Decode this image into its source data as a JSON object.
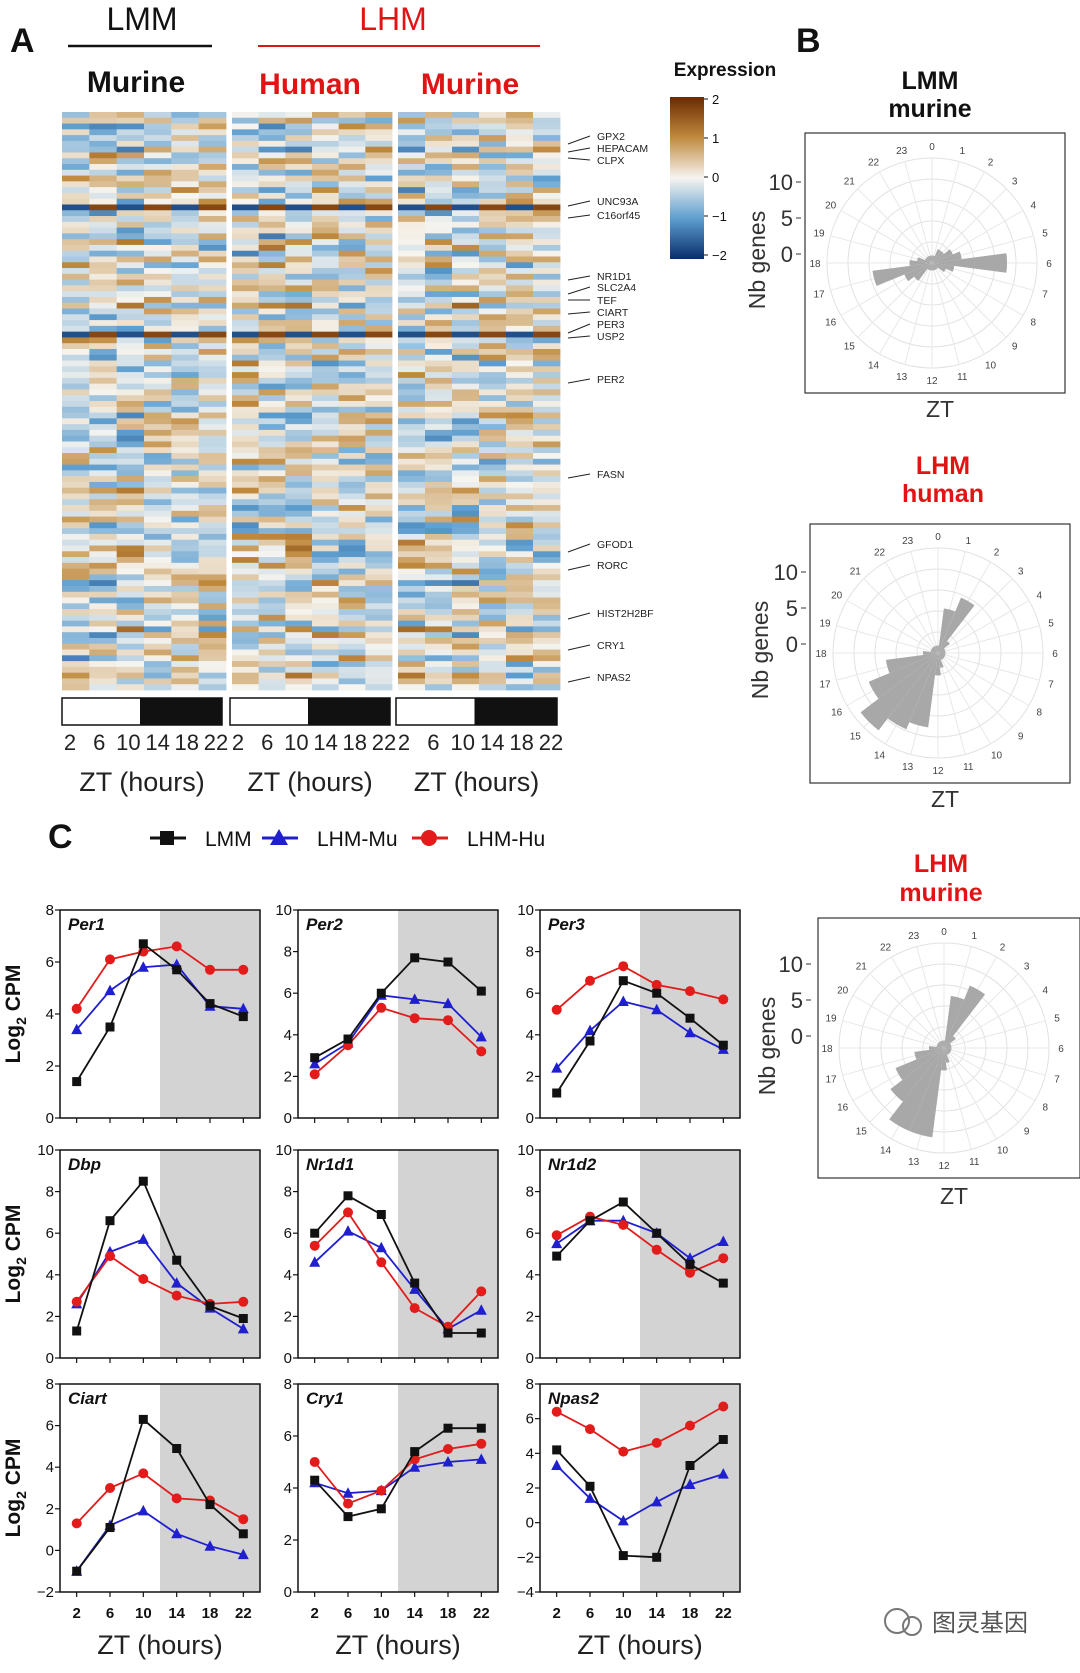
{
  "panel_labels": {
    "a": "A",
    "b": "B",
    "c": "C"
  },
  "heatmap_header": {
    "lmm": "LMM",
    "lhm": "LHM",
    "groups": [
      "Murine",
      "Human",
      "Murine"
    ]
  },
  "colorbar": {
    "title": "Expression",
    "ticks": [
      "2",
      "1",
      "0",
      "−1",
      "−2"
    ]
  },
  "heatmap_x": {
    "ticks": [
      "2",
      "6",
      "10",
      "14",
      "18",
      "22"
    ],
    "label": "ZT (hours)"
  },
  "colors": {
    "lmm": "#111111",
    "lhm_mu": "#1f1fd0",
    "lhm_hu": "#e21b1b",
    "red_text": "#e01414",
    "dark_shade": "#d3d3d3",
    "rose_bar": "#a8a8a8"
  },
  "gene_labels": [
    "GPX2",
    "HEPACAM",
    "CLPX",
    "UNC93A",
    "C16orf45",
    "NR1D1",
    "SLC2A4",
    "TEF",
    "CIART",
    "PER3",
    "USP2",
    "PER2",
    "FASN",
    "GFOD1",
    "RORC",
    "HIST2H2BF",
    "CRY1",
    "NPAS2"
  ],
  "rose_plots": [
    {
      "title1": "LMM",
      "title2": "murine",
      "title_color": "#111111",
      "ylabel": "Nb genes",
      "rticks": [
        "10",
        "5",
        "0"
      ],
      "xlabel": "ZT",
      "counts": [
        1,
        1,
        2,
        2,
        3,
        4,
        10,
        3,
        2,
        1,
        1,
        1,
        1,
        1,
        1,
        3,
        4,
        8,
        3,
        2,
        1,
        1,
        1,
        1
      ]
    },
    {
      "title1": "LHM",
      "title2": "human",
      "title_color": "#e01414",
      "ylabel": "Nb genes",
      "rticks": [
        "10",
        "5",
        "0"
      ],
      "xlabel": "ZT",
      "counts": [
        1,
        6,
        8,
        2,
        1,
        1,
        1,
        1,
        1,
        1,
        1,
        2,
        3,
        10,
        11,
        13,
        10,
        7,
        2,
        1,
        1,
        1,
        1,
        1
      ]
    },
    {
      "title1": "LHM",
      "title2": "murine",
      "title_color": "#e01414",
      "ylabel": "Nb genes",
      "rticks": [
        "10",
        "5",
        "0"
      ],
      "xlabel": "ZT",
      "counts": [
        1,
        7,
        9,
        2,
        1,
        1,
        1,
        1,
        1,
        1,
        1,
        2,
        3,
        12,
        12,
        9,
        7,
        4,
        2,
        1,
        1,
        1,
        1,
        1
      ]
    }
  ],
  "rose_hours": [
    "0",
    "1",
    "2",
    "3",
    "4",
    "5",
    "6",
    "7",
    "8",
    "9",
    "10",
    "11",
    "12",
    "13",
    "14",
    "15",
    "16",
    "17",
    "18",
    "19",
    "20",
    "21",
    "22",
    "23"
  ],
  "legend": [
    {
      "label": "LMM",
      "series": "lmm"
    },
    {
      "label": "LHM-Mu",
      "series": "lhm_mu"
    },
    {
      "label": "LHM-Hu",
      "series": "lhm_hu"
    }
  ],
  "line_axes": {
    "xlabel": "ZT (hours)",
    "ylabel": "Log",
    "ylabel_sub": "2",
    "ylabel_tail": " CPM"
  },
  "chart_data": {
    "type": "line",
    "x": [
      2,
      6,
      10,
      14,
      18,
      22
    ],
    "x_ticks": [
      "2",
      "6",
      "10",
      "14",
      "18",
      "22"
    ],
    "dark_phase_start": 12,
    "panels": [
      {
        "gene": "Per1",
        "ylim": [
          0,
          8
        ],
        "yticks": [
          "0",
          "2",
          "4",
          "6",
          "8"
        ],
        "series": {
          "lmm": [
            1.4,
            3.5,
            6.7,
            5.7,
            4.4,
            3.9
          ],
          "lhm_mu": [
            3.4,
            4.9,
            5.8,
            5.9,
            4.3,
            4.2
          ],
          "lhm_hu": [
            4.2,
            6.1,
            6.4,
            6.6,
            5.7,
            5.7
          ]
        }
      },
      {
        "gene": "Per2",
        "ylim": [
          0,
          10
        ],
        "yticks": [
          "0",
          "2",
          "4",
          "6",
          "8",
          "10"
        ],
        "series": {
          "lmm": [
            2.9,
            3.8,
            6.0,
            7.7,
            7.5,
            6.1
          ],
          "lhm_mu": [
            2.6,
            3.6,
            5.9,
            5.7,
            5.5,
            3.9
          ],
          "lhm_hu": [
            2.1,
            3.5,
            5.3,
            4.8,
            4.7,
            3.2
          ]
        }
      },
      {
        "gene": "Per3",
        "ylim": [
          0,
          10
        ],
        "yticks": [
          "0",
          "2",
          "4",
          "6",
          "8",
          "10"
        ],
        "series": {
          "lmm": [
            1.2,
            3.7,
            6.6,
            6.0,
            4.8,
            3.5
          ],
          "lhm_mu": [
            2.4,
            4.2,
            5.6,
            5.2,
            4.1,
            3.3
          ],
          "lhm_hu": [
            5.2,
            6.6,
            7.3,
            6.4,
            6.1,
            5.7
          ]
        }
      },
      {
        "gene": "Dbp",
        "ylim": [
          0,
          10
        ],
        "yticks": [
          "0",
          "2",
          "4",
          "6",
          "8",
          "10"
        ],
        "series": {
          "lmm": [
            1.3,
            6.6,
            8.5,
            4.7,
            2.5,
            1.9
          ],
          "lhm_mu": [
            2.6,
            5.1,
            5.7,
            3.6,
            2.4,
            1.4
          ],
          "lhm_hu": [
            2.7,
            4.9,
            3.8,
            3.0,
            2.6,
            2.7
          ]
        }
      },
      {
        "gene": "Nr1d1",
        "ylim": [
          0,
          10
        ],
        "yticks": [
          "0",
          "2",
          "4",
          "6",
          "8",
          "10"
        ],
        "series": {
          "lmm": [
            6.0,
            7.8,
            6.9,
            3.6,
            1.2,
            1.2
          ],
          "lhm_mu": [
            4.6,
            6.1,
            5.3,
            3.3,
            1.4,
            2.3
          ],
          "lhm_hu": [
            5.4,
            7.0,
            4.6,
            2.4,
            1.5,
            3.2
          ]
        }
      },
      {
        "gene": "Nr1d2",
        "ylim": [
          0,
          10
        ],
        "yticks": [
          "0",
          "2",
          "4",
          "6",
          "8",
          "10"
        ],
        "series": {
          "lmm": [
            4.9,
            6.6,
            7.5,
            6.0,
            4.5,
            3.6
          ],
          "lhm_mu": [
            5.5,
            6.6,
            6.6,
            6.0,
            4.8,
            5.6
          ],
          "lhm_hu": [
            5.9,
            6.8,
            6.4,
            5.2,
            4.1,
            4.8
          ]
        }
      },
      {
        "gene": "Ciart",
        "ylim": [
          -2,
          8
        ],
        "yticks": [
          "−2",
          "0",
          "2",
          "4",
          "6",
          "8"
        ],
        "series": {
          "lmm": [
            -1.0,
            1.1,
            6.3,
            4.9,
            2.2,
            0.8
          ],
          "lhm_mu": [
            -1.0,
            1.2,
            1.9,
            0.8,
            0.2,
            -0.2
          ],
          "lhm_hu": [
            1.3,
            3.0,
            3.7,
            2.5,
            2.4,
            1.5
          ]
        }
      },
      {
        "gene": "Cry1",
        "ylim": [
          0,
          8
        ],
        "yticks": [
          "0",
          "2",
          "4",
          "6",
          "8"
        ],
        "series": {
          "lmm": [
            4.3,
            2.9,
            3.2,
            5.4,
            6.3,
            6.3
          ],
          "lhm_mu": [
            4.2,
            3.8,
            3.9,
            4.8,
            5.0,
            5.1
          ],
          "lhm_hu": [
            5.0,
            3.4,
            3.9,
            5.1,
            5.5,
            5.7
          ]
        }
      },
      {
        "gene": "Npas2",
        "ylim": [
          -4,
          8
        ],
        "yticks": [
          "−4",
          "−2",
          "0",
          "2",
          "4",
          "6",
          "8"
        ],
        "series": {
          "lmm": [
            4.2,
            2.1,
            -1.9,
            -2.0,
            3.3,
            4.8
          ],
          "lhm_mu": [
            3.3,
            1.4,
            0.1,
            1.2,
            2.2,
            2.8
          ],
          "lhm_hu": [
            6.4,
            5.4,
            4.1,
            4.6,
            5.6,
            6.7
          ]
        }
      }
    ]
  },
  "watermark": "图灵基因"
}
